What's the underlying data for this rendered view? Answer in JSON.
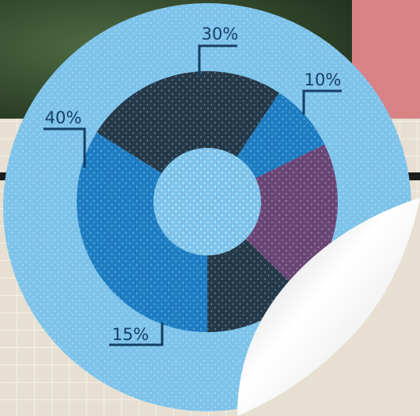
{
  "chart_data": {
    "type": "donut",
    "categories": [
      null,
      null,
      null,
      null,
      null
    ],
    "values": [
      30,
      10,
      23,
      15,
      40
    ],
    "value_labels": [
      "30%",
      "10%",
      null,
      "15%",
      "40%"
    ],
    "colors": [
      "#243949",
      "#1e7dc2",
      "#6a4676",
      "#243949",
      "#1e7dc2"
    ]
  }
}
